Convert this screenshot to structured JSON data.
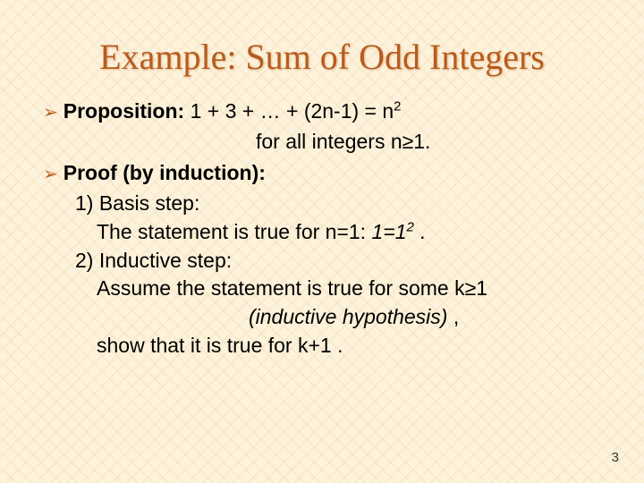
{
  "colors": {
    "background": "#fdf2db",
    "title_color": "#b85c1e",
    "bullet_color": "#b85c1e",
    "text_color": "#000000"
  },
  "fonts": {
    "title_family": "Georgia, serif",
    "title_size_pt": 30,
    "body_family": "Arial, sans-serif",
    "body_size_pt": 17
  },
  "title": "Example: Sum of Odd Integers",
  "proposition": {
    "label": "Proposition:",
    "formula": "1 + 3 + … + (2n-1) = n",
    "formula_sup": "2",
    "condition": "for all integers n≥1."
  },
  "proof": {
    "label": "Proof (by induction):",
    "basis": {
      "num": "1) Basis step:",
      "line": "The statement is true for n=1:  ",
      "eq_lhs": "1=1",
      "eq_sup": "2",
      "eq_tail": " ."
    },
    "inductive": {
      "num": "2) Inductive step:",
      "assume": "Assume the statement is true for some k≥1",
      "hypothesis": "(inductive hypothesis)",
      "hyp_tail": " ,",
      "show": "show that it is true for k+1 ."
    }
  },
  "page_number": "3"
}
